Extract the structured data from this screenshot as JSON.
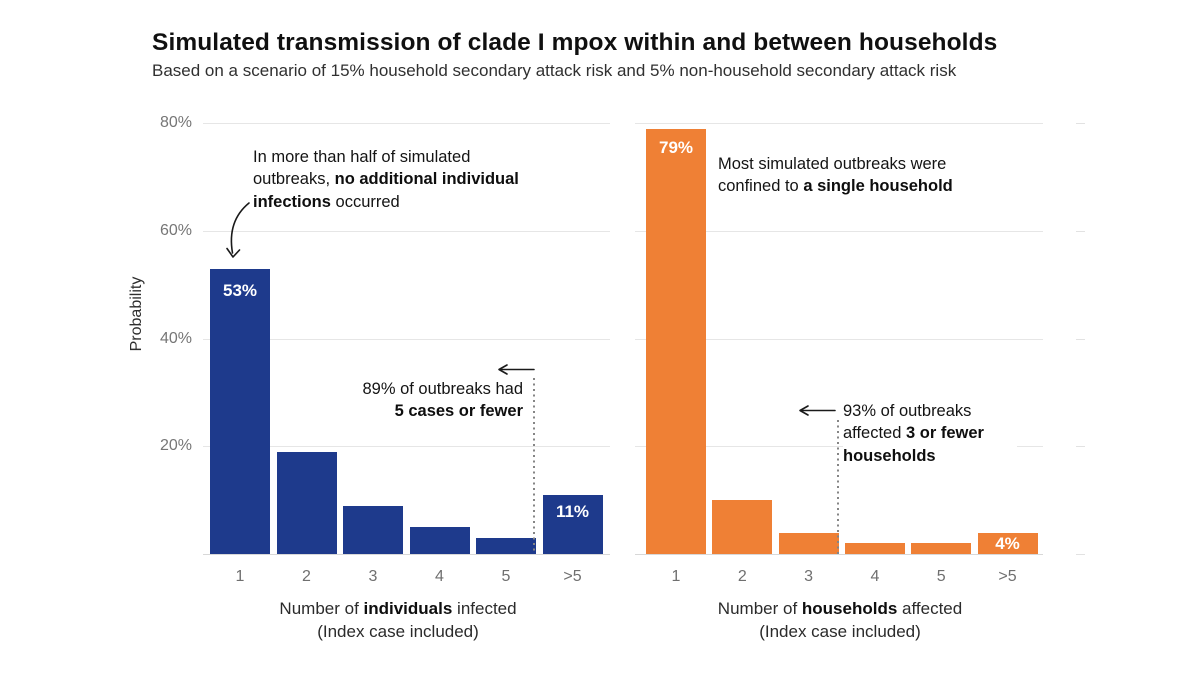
{
  "header": {
    "title": "Simulated transmission of clade I mpox within and between households",
    "subtitle": "Based on a scenario of 15% household secondary attack risk and 5% non-household secondary attack risk"
  },
  "colors": {
    "navy": "#1e3a8c",
    "orange": "#ef8035",
    "gridline": "#e6e6e6",
    "axis_text": "#6f6f6f",
    "annotation_text": "#141414"
  },
  "chart_data": [
    {
      "type": "bar",
      "position": "left",
      "categories": [
        "1",
        "2",
        "3",
        "4",
        "5",
        ">5"
      ],
      "values": [
        53,
        19,
        9,
        5,
        3,
        11
      ],
      "bar_color_key": "navy",
      "value_labels": [
        {
          "index": 0,
          "text": "53%"
        },
        {
          "index": 5,
          "text": "11%"
        }
      ],
      "ylabel": "Probability",
      "y_tick_labels": [
        "80%",
        "60%",
        "40%",
        "20%"
      ],
      "y_tick_values": [
        80,
        60,
        40,
        20
      ],
      "ylim": [
        0,
        80
      ],
      "grid": "horizontal",
      "xlabel_lines": [
        [
          {
            "t": "Number of "
          },
          {
            "t": "individuals",
            "b": true
          },
          {
            "t": " infected"
          }
        ],
        [
          {
            "t": "(Index case included)"
          }
        ]
      ],
      "threshold_line_between": [
        "5",
        ">5"
      ],
      "annotations": [
        {
          "id": "no-additional-infections",
          "lines": [
            [
              {
                "t": "In more than half of simulated"
              }
            ],
            [
              {
                "t": "outbreaks, "
              },
              {
                "t": "no additional individual",
                "b": true
              }
            ],
            [
              {
                "t": "infections",
                "b": true
              },
              {
                "t": " occurred"
              }
            ]
          ]
        },
        {
          "id": "five-cases-or-fewer",
          "lines": [
            [
              {
                "t": "89% of outbreaks had"
              }
            ],
            [
              {
                "t": "5 cases or fewer",
                "b": true
              }
            ]
          ]
        }
      ]
    },
    {
      "type": "bar",
      "position": "right",
      "categories": [
        "1",
        "2",
        "3",
        "4",
        "5",
        ">5"
      ],
      "values": [
        79,
        10,
        4,
        2,
        2,
        4
      ],
      "bar_color_key": "orange",
      "value_labels": [
        {
          "index": 0,
          "text": "79%"
        },
        {
          "index": 5,
          "text": "4%"
        }
      ],
      "ylabel": "",
      "y_tick_labels": [],
      "y_tick_values": [
        80,
        60,
        40,
        20
      ],
      "ylim": [
        0,
        80
      ],
      "grid": "horizontal",
      "xlabel_lines": [
        [
          {
            "t": "Number of "
          },
          {
            "t": "households",
            "b": true
          },
          {
            "t": " affected"
          }
        ],
        [
          {
            "t": "(Index case included)"
          }
        ]
      ],
      "threshold_line_between": [
        "3",
        "4"
      ],
      "annotations": [
        {
          "id": "single-household",
          "lines": [
            [
              {
                "t": "Most simulated outbreaks were"
              }
            ],
            [
              {
                "t": "confined to "
              },
              {
                "t": "a single household",
                "b": true
              }
            ]
          ]
        },
        {
          "id": "three-or-fewer-households",
          "lines": [
            [
              {
                "t": "93% of outbreaks"
              }
            ],
            [
              {
                "t": "affected "
              },
              {
                "t": "3 or fewer",
                "b": true
              }
            ],
            [
              {
                "t": "households",
                "b": true
              }
            ]
          ]
        }
      ]
    }
  ]
}
